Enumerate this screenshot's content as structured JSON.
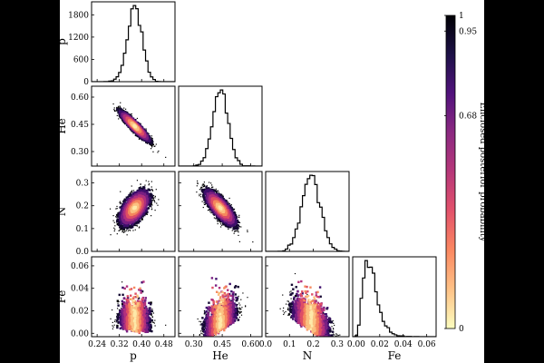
{
  "chart_data": {
    "type": "corner",
    "parameters": [
      "p",
      "He",
      "N",
      "Fe"
    ],
    "axis_labels": {
      "p": "p",
      "He": "He",
      "N": "N",
      "Fe": "Fe"
    },
    "ranges": {
      "p": [
        0.22,
        0.52
      ],
      "He": [
        0.22,
        0.66
      ],
      "N": [
        0.0,
        0.35
      ],
      "Fe": [
        -0.003,
        0.068
      ]
    },
    "ticks": {
      "p": [
        0.24,
        0.32,
        0.4,
        0.48
      ],
      "He": [
        0.3,
        0.45,
        0.6
      ],
      "N": [
        0.0,
        0.1,
        0.2,
        0.3
      ],
      "Fe": [
        0.0,
        0.02,
        0.04,
        0.06
      ]
    },
    "tick_labels": {
      "p": [
        "0.24",
        "0.32",
        "0.40",
        "0.48"
      ],
      "He": [
        "0.30",
        "0.45",
        "0.60"
      ],
      "N": [
        "0.0",
        "0.1",
        "0.2",
        "0.3"
      ],
      "Fe": [
        "0.00",
        "0.02",
        "0.04",
        "0.06"
      ]
    },
    "histogram_count_axis": {
      "ticks": [
        0,
        600,
        1200,
        1800
      ],
      "labels": [
        "0",
        "600",
        "1200",
        "1800"
      ],
      "max": 2150
    },
    "marginals": [
      {
        "param": "p",
        "mean": 0.375,
        "sd": 0.026,
        "peak_count": 2050,
        "skew": 0
      },
      {
        "param": "He",
        "mean": 0.44,
        "sd": 0.04,
        "peak_count": 2050,
        "skew": 0
      },
      {
        "param": "N",
        "mean": 0.19,
        "sd": 0.038,
        "peak_count": 2050,
        "skew": 0
      },
      {
        "param": "Fe",
        "mean": 0.012,
        "sd": 0.0085,
        "peak_count": 2050,
        "skew": 1
      }
    ],
    "pairs": [
      {
        "x": "p",
        "y": "He",
        "correlation": -0.92
      },
      {
        "x": "p",
        "y": "N",
        "correlation": 0.55
      },
      {
        "x": "He",
        "y": "N",
        "correlation": -0.78
      },
      {
        "x": "p",
        "y": "Fe",
        "correlation": -0.05
      },
      {
        "x": "He",
        "y": "Fe",
        "correlation": 0.45
      },
      {
        "x": "N",
        "y": "Fe",
        "correlation": -0.55
      }
    ],
    "colorbar": {
      "label": "Enclosed posterior probability",
      "ticks": [
        0,
        0.68,
        0.95,
        1
      ],
      "tick_labels": [
        "0",
        "0.68",
        "0.95",
        "1"
      ],
      "colormap": "magma_r",
      "colors": [
        "#fcfdbf",
        "#fec287",
        "#fb8861",
        "#e3526b",
        "#b73779",
        "#8c2981",
        "#51127c",
        "#1d1147",
        "#000004"
      ]
    },
    "density_colors": [
      "#fde9a9",
      "#fbc080",
      "#f5895e",
      "#de4f66",
      "#b1317e",
      "#7a2083",
      "#3e0f6c",
      "#150a33",
      "#000000"
    ]
  }
}
